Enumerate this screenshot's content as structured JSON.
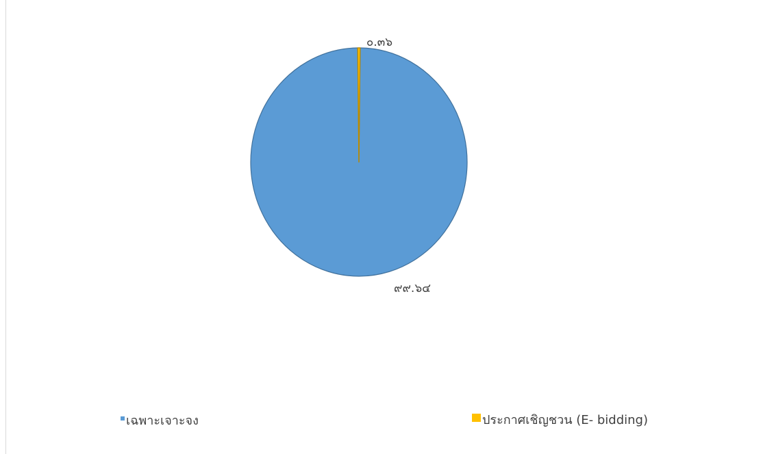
{
  "chart_data": {
    "type": "pie",
    "title": "",
    "categories": [
      "เฉพาะเจาะจง",
      "ประกาศเชิญชวน (E- bidding)"
    ],
    "values": [
      99.64,
      0.36
    ],
    "data_labels": [
      "๙๙.๖๔",
      "๐.๓๖"
    ],
    "colors": [
      "#5B9BD5",
      "#FFC000"
    ],
    "legend_position": "bottom",
    "grid": false
  }
}
